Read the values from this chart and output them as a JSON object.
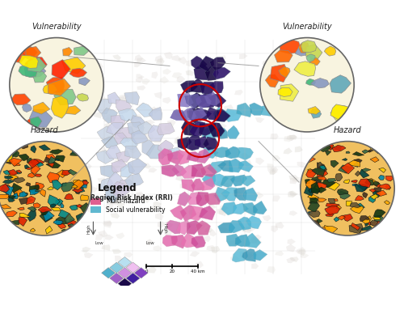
{
  "bg_color": "#ffffff",
  "map_bg": "#f2f0ec",
  "legend_title": "Legend",
  "legend_subtitle": "Region Risk Index (RRI)",
  "legend_item1": "Multi-hazard",
  "legend_item2": "Social vulnerability",
  "legend_color1": "#e06090",
  "legend_color2": "#60b8d0",
  "circle_tl_label": "Vulnerability",
  "circle_left_label": "Hazard",
  "circle_tr_label": "Vulnerability",
  "circle_right_label": "Hazard",
  "red_circle_color": "#cc0000",
  "annotation_line_color": "#888888",
  "vuln_region_colors": [
    "#ff2200",
    "#ff3300",
    "#ff4400",
    "#ff6600",
    "#ff8800",
    "#ffaa00",
    "#ffcc00",
    "#ffee00",
    "#eeee44",
    "#c8d850",
    "#80c888",
    "#40b878",
    "#60a8b8",
    "#8898c0"
  ],
  "hazard_region_colors": [
    "#ff8800",
    "#ffaa00",
    "#ffcc00",
    "#ff5500",
    "#ee3300",
    "#dd2200",
    "#224422",
    "#113311",
    "#443322",
    "#665533",
    "#008888",
    "#004444",
    "#0088aa",
    "#336644"
  ],
  "map_light_colors": [
    "#c8d4e4",
    "#ccd0e8",
    "#d4cce0",
    "#c0cce0",
    "#b8c8dc",
    "#d0c8e0",
    "#c4d8ec",
    "#bcc8e0"
  ],
  "map_pink_colors": [
    "#e060a8",
    "#d858a0",
    "#e870b0",
    "#cc4898",
    "#d060a8",
    "#e878b8",
    "#c84090",
    "#d05898"
  ],
  "map_dark_colors": [
    "#1a0848",
    "#200c58",
    "#280e60",
    "#1e0a50",
    "#160640",
    "#2a1068",
    "#220c58",
    "#180848"
  ],
  "map_teal_colors": [
    "#3898b8",
    "#40a8c8",
    "#48b0d0",
    "#50b8d8",
    "#44a8c4",
    "#38a0c0",
    "#4cb0cc",
    "#54b8d4"
  ],
  "map_purple_colors": [
    "#6858a8",
    "#7060b0",
    "#7868b8",
    "#8070c0",
    "#6860a8"
  ],
  "diamond_row1": [
    "#1a0848",
    "#4020a0",
    "#8040c0"
  ],
  "diamond_row2": [
    "#a060c8",
    "#d090e0",
    "#f0c0f0"
  ],
  "diamond_row3": [
    "#50b0cc",
    "#88cce0",
    "#b8e0f0"
  ]
}
